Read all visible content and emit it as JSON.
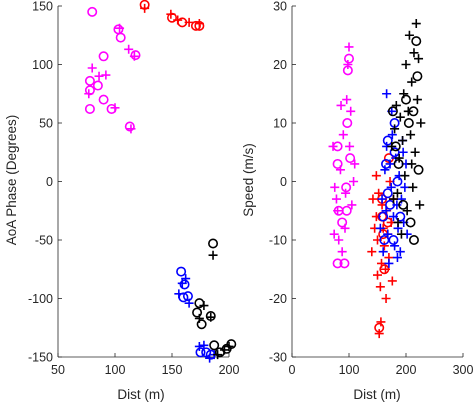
{
  "colors": {
    "magenta": "#ff00ff",
    "red": "#ff0000",
    "blue": "#0000ff",
    "black": "#000000"
  },
  "chart_data": [
    {
      "type": "scatter",
      "title": "",
      "xlabel": "Dist (m)",
      "ylabel": "AoA Phase (Degrees)",
      "xlim": [
        50,
        200
      ],
      "ylim": [
        -150,
        150
      ],
      "xticks": [
        "50",
        "100",
        "150",
        "200"
      ],
      "yticks": [
        "-150",
        "-100",
        "-50",
        "0",
        "50",
        "100",
        "150"
      ],
      "grid": false,
      "series": [
        {
          "color": "#ff00ff",
          "marker": "circle",
          "points": [
            [
              80,
              145
            ],
            [
              78,
              86
            ],
            [
              85,
              82
            ],
            [
              90,
              107
            ],
            [
              90,
              70
            ],
            [
              78,
              62
            ],
            [
              97,
              62
            ],
            [
              103,
              130
            ],
            [
              118,
              108
            ],
            [
              113,
              47
            ],
            [
              78,
              78
            ],
            [
              105,
              123
            ]
          ]
        },
        {
          "color": "#ff00ff",
          "marker": "plus",
          "points": [
            [
              80,
              97
            ],
            [
              86,
              90
            ],
            [
              92,
              91
            ],
            [
              100,
              63
            ],
            [
              104,
              131
            ],
            [
              112,
              113
            ],
            [
              114,
              45
            ],
            [
              77,
              75
            ],
            [
              117,
              107
            ]
          ]
        },
        {
          "color": "#ff0000",
          "marker": "circle",
          "points": [
            [
              126,
              151
            ],
            [
              150,
              140
            ],
            [
              159,
              136
            ],
            [
              171,
              133
            ],
            [
              174,
              133
            ]
          ]
        },
        {
          "color": "#ff0000",
          "marker": "plus",
          "points": [
            [
              126,
              148
            ],
            [
              149,
              143
            ],
            [
              155,
              138
            ],
            [
              165,
              136
            ],
            [
              174,
              135
            ]
          ]
        },
        {
          "color": "#0000ff",
          "marker": "circle",
          "points": [
            [
              158,
              -77
            ],
            [
              161,
              -88
            ],
            [
              164,
              -98
            ],
            [
              160,
              -99
            ],
            [
              175,
              -146
            ],
            [
              180,
              -146
            ],
            [
              184,
              -148
            ]
          ]
        },
        {
          "color": "#0000ff",
          "marker": "plus",
          "points": [
            [
              156,
              -96
            ],
            [
              159,
              -87
            ],
            [
              162,
              -83
            ],
            [
              165,
              -104
            ],
            [
              174,
              -141
            ],
            [
              178,
              -140
            ],
            [
              183,
              -151
            ],
            [
              187,
              -148
            ]
          ]
        },
        {
          "color": "#000000",
          "marker": "circle",
          "points": [
            [
              186,
              -53
            ],
            [
              174,
              -104
            ],
            [
              172,
              -112
            ],
            [
              176,
              -122
            ],
            [
              184,
              -115
            ],
            [
              192,
              -146
            ],
            [
              198,
              -143
            ],
            [
              202,
              -139
            ],
            [
              187,
              -140
            ]
          ]
        },
        {
          "color": "#000000",
          "marker": "plus",
          "points": [
            [
              186,
              -63
            ],
            [
              178,
              -106
            ],
            [
              174,
              -117
            ],
            [
              184,
              -116
            ],
            [
              190,
              -148
            ],
            [
              196,
              -144
            ],
            [
              200,
              -141
            ]
          ]
        }
      ]
    },
    {
      "type": "scatter",
      "title": "",
      "xlabel": "Dist (m)",
      "ylabel": "Speed (m/s)",
      "xlim": [
        0,
        300
      ],
      "ylim": [
        -30,
        30
      ],
      "xticks": [
        "0",
        "100",
        "200",
        "300"
      ],
      "yticks": [
        "-30",
        "-20",
        "-10",
        "0",
        "10",
        "20",
        "30"
      ],
      "grid": false,
      "series": [
        {
          "color": "#ff00ff",
          "marker": "circle",
          "points": [
            [
              80,
              6
            ],
            [
              82,
              -5
            ],
            [
              88,
              -7
            ],
            [
              92,
              -14
            ],
            [
              80,
              -14
            ],
            [
              96,
              -5
            ],
            [
              95,
              -1
            ],
            [
              97,
              10
            ],
            [
              100,
              21
            ],
            [
              98,
              19
            ],
            [
              102,
              4
            ],
            [
              80,
              3
            ]
          ]
        },
        {
          "color": "#ff00ff",
          "marker": "plus",
          "points": [
            [
              72,
              6
            ],
            [
              75,
              -1
            ],
            [
              78,
              -3
            ],
            [
              80,
              -5
            ],
            [
              82,
              -10
            ],
            [
              85,
              2
            ],
            [
              88,
              -12
            ],
            [
              90,
              8
            ],
            [
              93,
              -8
            ],
            [
              96,
              14
            ],
            [
              98,
              20
            ],
            [
              100,
              23
            ],
            [
              103,
              12
            ],
            [
              105,
              -4
            ],
            [
              108,
              0
            ],
            [
              110,
              3
            ],
            [
              74,
              -9
            ],
            [
              86,
              13
            ],
            [
              94,
              -2
            ],
            [
              101,
              6
            ]
          ]
        },
        {
          "color": "#ff0000",
          "marker": "circle",
          "points": [
            [
              153,
              -25
            ],
            [
              158,
              -6
            ],
            [
              160,
              -9
            ],
            [
              162,
              -15
            ],
            [
              168,
              -7
            ],
            [
              170,
              4
            ],
            [
              158,
              -3
            ]
          ]
        },
        {
          "color": "#ff0000",
          "marker": "plus",
          "points": [
            [
              140,
              -12
            ],
            [
              142,
              -3
            ],
            [
              145,
              -8
            ],
            [
              148,
              -6
            ],
            [
              150,
              -10
            ],
            [
              150,
              -16
            ],
            [
              152,
              -2
            ],
            [
              153,
              -26
            ],
            [
              155,
              -18
            ],
            [
              157,
              -14
            ],
            [
              158,
              -4
            ],
            [
              160,
              -8
            ],
            [
              162,
              -11
            ],
            [
              164,
              -15
            ],
            [
              165,
              -20
            ],
            [
              166,
              -5
            ],
            [
              168,
              -9
            ],
            [
              170,
              -13
            ],
            [
              172,
              0
            ],
            [
              174,
              -7
            ],
            [
              176,
              -17
            ],
            [
              178,
              -3
            ],
            [
              156,
              -24
            ],
            [
              148,
              1
            ]
          ]
        },
        {
          "color": "#0000ff",
          "marker": "circle",
          "points": [
            [
              160,
              -6
            ],
            [
              162,
              -10
            ],
            [
              165,
              3
            ],
            [
              168,
              -2
            ],
            [
              172,
              -4
            ],
            [
              178,
              -10
            ],
            [
              180,
              5
            ],
            [
              185,
              0
            ],
            [
              190,
              -6
            ],
            [
              180,
              10
            ],
            [
              168,
              7
            ]
          ]
        },
        {
          "color": "#0000ff",
          "marker": "plus",
          "points": [
            [
              155,
              -8
            ],
            [
              158,
              -3
            ],
            [
              160,
              -12
            ],
            [
              163,
              2
            ],
            [
              165,
              -5
            ],
            [
              166,
              6
            ],
            [
              168,
              -9
            ],
            [
              170,
              -14
            ],
            [
              172,
              3
            ],
            [
              174,
              -1
            ],
            [
              176,
              8
            ],
            [
              178,
              -6
            ],
            [
              180,
              -11
            ],
            [
              182,
              4
            ],
            [
              184,
              -4
            ],
            [
              186,
              -8
            ],
            [
              188,
              1
            ],
            [
              190,
              -12
            ],
            [
              192,
              -3
            ],
            [
              194,
              7
            ],
            [
              196,
              -7
            ],
            [
              198,
              -1
            ],
            [
              200,
              3
            ],
            [
              202,
              -9
            ],
            [
              166,
              15
            ],
            [
              175,
              12
            ],
            [
              185,
              -13
            ],
            [
              195,
              5
            ]
          ]
        },
        {
          "color": "#000000",
          "marker": "circle",
          "points": [
            [
              177,
              12
            ],
            [
              182,
              6
            ],
            [
              187,
              3
            ],
            [
              195,
              -4
            ],
            [
              200,
              14
            ],
            [
              205,
              10
            ],
            [
              208,
              -7
            ],
            [
              214,
              -10
            ],
            [
              218,
              24
            ],
            [
              220,
              18
            ],
            [
              222,
              2
            ],
            [
              213,
              12
            ]
          ]
        },
        {
          "color": "#000000",
          "marker": "plus",
          "points": [
            [
              175,
              6
            ],
            [
              178,
              -3
            ],
            [
              180,
              9
            ],
            [
              183,
              13
            ],
            [
              185,
              -2
            ],
            [
              188,
              4
            ],
            [
              190,
              11
            ],
            [
              192,
              -9
            ],
            [
              194,
              7
            ],
            [
              196,
              15
            ],
            [
              198,
              1
            ],
            [
              200,
              20
            ],
            [
              202,
              -5
            ],
            [
              204,
              12
            ],
            [
              206,
              25
            ],
            [
              208,
              8
            ],
            [
              210,
              17
            ],
            [
              212,
              -1
            ],
            [
              214,
              22
            ],
            [
              216,
              5
            ],
            [
              218,
              27
            ],
            [
              220,
              14
            ],
            [
              222,
              21
            ],
            [
              224,
              -4
            ],
            [
              226,
              10
            ],
            [
              210,
              3
            ],
            [
              186,
              -7
            ]
          ]
        }
      ]
    }
  ]
}
